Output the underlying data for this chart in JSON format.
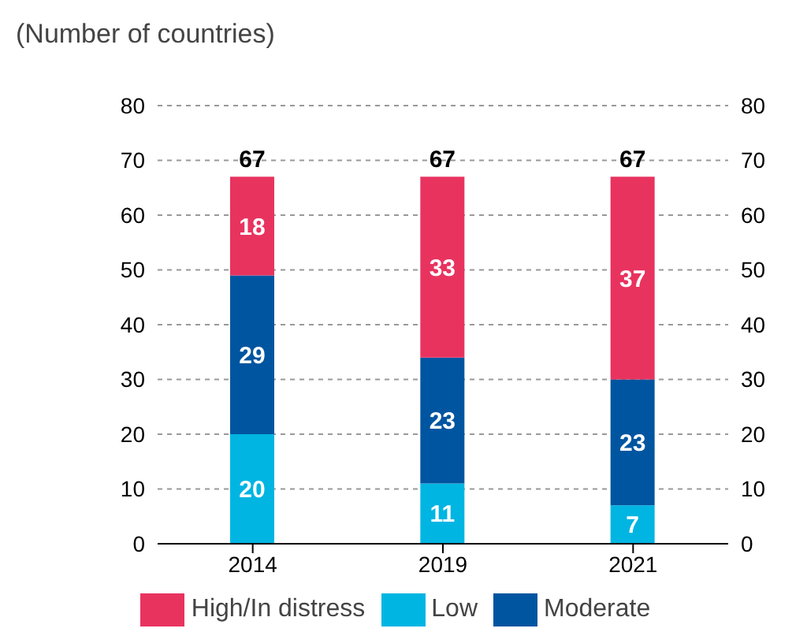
{
  "chart_data": {
    "type": "bar",
    "ylabel": "(Number of countries)",
    "categories": [
      "2014",
      "2019",
      "2021"
    ],
    "series": [
      {
        "name": "Low",
        "color": "#00b5e2",
        "values": [
          20,
          11,
          7
        ]
      },
      {
        "name": "Moderate",
        "color": "#0055a0",
        "values": [
          29,
          23,
          23
        ]
      },
      {
        "name": "High/In distress",
        "color": "#e8335f",
        "values": [
          18,
          33,
          37
        ]
      }
    ],
    "stacked": true,
    "data_labels": true,
    "totals": [
      "67",
      "67",
      "67"
    ],
    "ylim": [
      0,
      80
    ],
    "yticks": [
      0,
      10,
      20,
      30,
      40,
      50,
      60,
      70,
      80
    ],
    "y2lim": [
      0,
      80
    ],
    "y2ticks": [
      0,
      10,
      20,
      30,
      40,
      50,
      60,
      70,
      80
    ],
    "grid": "y",
    "legend": "bottom"
  }
}
